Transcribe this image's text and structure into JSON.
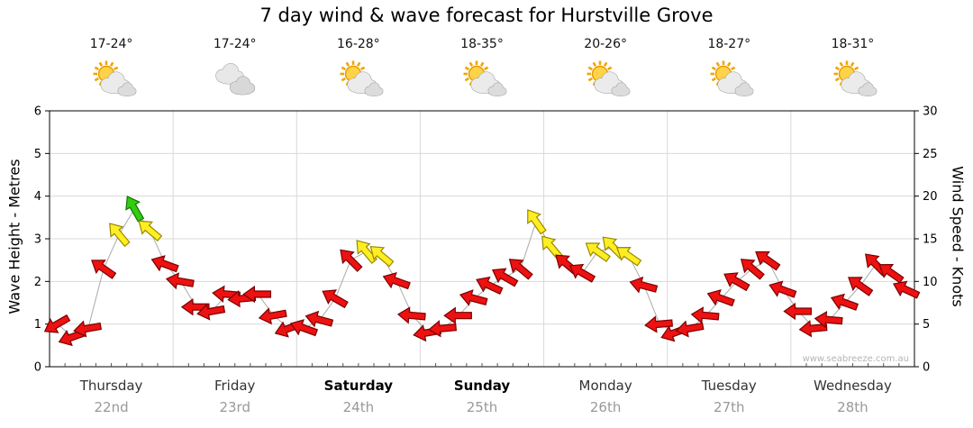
{
  "title": "7 day wind & wave forecast for Hurstville Grove",
  "watermark": "www.seabreeze.com.au",
  "days": [
    {
      "name": "Thursday",
      "date": "22nd",
      "temp": "17-24°",
      "icon": "sun-cloud",
      "bold": false
    },
    {
      "name": "Friday",
      "date": "23rd",
      "temp": "17-24°",
      "icon": "clouds",
      "bold": false
    },
    {
      "name": "Saturday",
      "date": "24th",
      "temp": "16-28°",
      "icon": "sun-cloud",
      "bold": true
    },
    {
      "name": "Sunday",
      "date": "25th",
      "temp": "18-35°",
      "icon": "sun-cloud",
      "bold": true
    },
    {
      "name": "Monday",
      "date": "26th",
      "temp": "20-26°",
      "icon": "sun-cloud",
      "bold": false
    },
    {
      "name": "Tuesday",
      "date": "27th",
      "temp": "18-27°",
      "icon": "sun-cloud",
      "bold": false
    },
    {
      "name": "Wednesday",
      "date": "28th",
      "temp": "18-31°",
      "icon": "sun-cloud",
      "bold": false
    }
  ],
  "chart_data": {
    "type": "scatter",
    "subtype": "wind-arrows",
    "title": "7 day wind & wave forecast for Hurstville Grove",
    "grid": true,
    "x_axis": {
      "categories": [
        "Thursday",
        "Friday",
        "Saturday",
        "Sunday",
        "Monday",
        "Tuesday",
        "Wednesday"
      ],
      "category_dates": [
        "22nd",
        "23rd",
        "24th",
        "25th",
        "26th",
        "27th",
        "28th"
      ],
      "span_days": 7,
      "points_per_day": 8,
      "point_spacing_hours": 3
    },
    "y_axis_left": {
      "label": "Wave Height - Metres",
      "range": [
        0,
        6
      ],
      "ticks": [
        0,
        1,
        2,
        3,
        4,
        5,
        6
      ]
    },
    "y_axis_right": {
      "label": "Wind Speed - Knots",
      "range": [
        0,
        30
      ],
      "ticks": [
        0,
        5,
        10,
        15,
        20,
        25,
        30
      ]
    },
    "series": [
      {
        "name": "Wind speed",
        "unit": "knots",
        "values": [
          5,
          3.5,
          4.5,
          11.5,
          15.5,
          18.5,
          16,
          12,
          10,
          7,
          6.5,
          8.5,
          8,
          8.5,
          6,
          4.5,
          4.5,
          5.5,
          8,
          12.5,
          13.5,
          13,
          10,
          6,
          4,
          4.5,
          6,
          8,
          9.5,
          10.5,
          11.5,
          17,
          14,
          12,
          11,
          13.5,
          14,
          13,
          9.5,
          5,
          4,
          4.5,
          6,
          8,
          10,
          11.5,
          12.5,
          9,
          6.5,
          4.5,
          5.5,
          7.5,
          9.5,
          12,
          11,
          9
        ],
        "directions_deg": [
          150,
          160,
          170,
          215,
          230,
          240,
          220,
          200,
          190,
          180,
          170,
          185,
          175,
          180,
          170,
          160,
          200,
          195,
          210,
          225,
          230,
          220,
          200,
          185,
          170,
          175,
          180,
          195,
          205,
          210,
          220,
          235,
          230,
          220,
          210,
          215,
          225,
          215,
          195,
          175,
          160,
          170,
          185,
          200,
          210,
          220,
          215,
          200,
          180,
          175,
          185,
          200,
          215,
          225,
          215,
          205
        ]
      }
    ],
    "color_coding": {
      "red_below_knots": 13,
      "yellow_from_knots": 13,
      "green_from_knots": 18,
      "red": "#ee1111",
      "red_stroke": "#7a0000",
      "yellow": "#ffee22",
      "yellow_stroke": "#998800",
      "green": "#33cc11",
      "green_stroke": "#0c7700"
    }
  }
}
